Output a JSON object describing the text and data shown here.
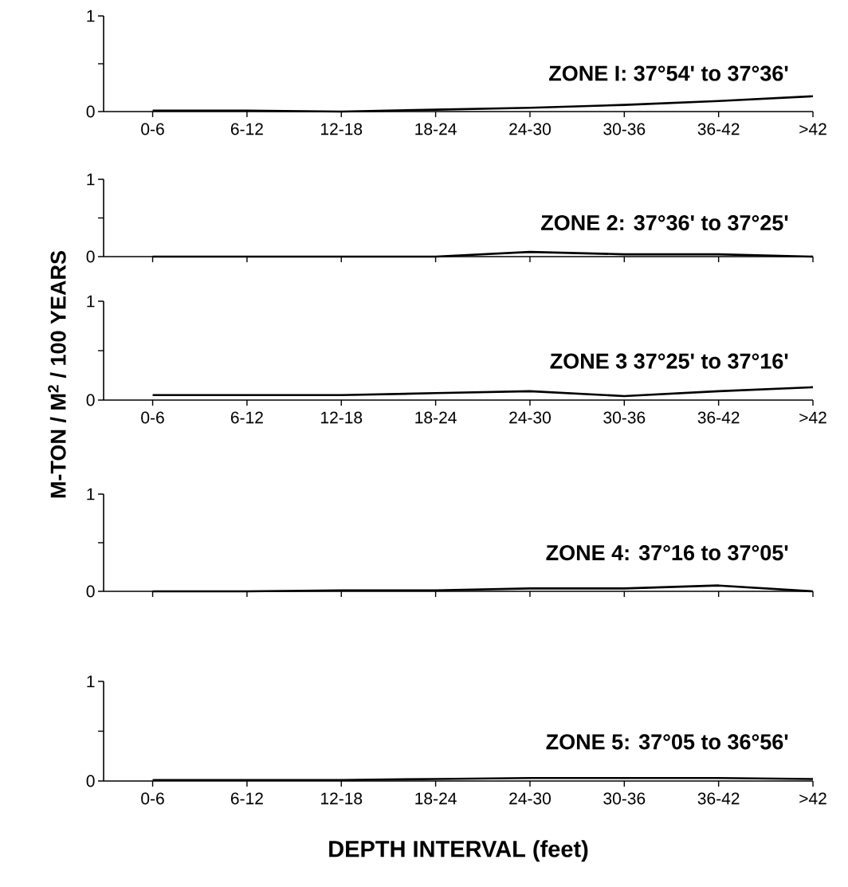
{
  "chart_data": [
    {
      "type": "line",
      "title": "ZONE I: 37°54' to 37°36'",
      "categories": [
        "0-6",
        "6-12",
        "12-18",
        "18-24",
        "24-30",
        "30-36",
        "36-42",
        ">42"
      ],
      "values": [
        0.01,
        0.01,
        0.0,
        0.02,
        0.04,
        0.07,
        0.11,
        0.16
      ],
      "color": "#000000",
      "ylim": [
        0,
        1
      ],
      "yticks": [
        0,
        1
      ]
    },
    {
      "type": "line",
      "title": "ZONE 2: 37°36' to 37°25'",
      "categories": [
        null,
        null,
        null,
        null,
        null,
        null,
        null,
        null
      ],
      "values": [
        0.0,
        0.0,
        0.0,
        0.0,
        0.06,
        0.03,
        0.03,
        0.0
      ],
      "color": "#000000",
      "ylim": [
        0,
        1
      ],
      "yticks": [
        0,
        1
      ]
    },
    {
      "type": "line",
      "title": "ZONE 3 37°25' to 37°16'",
      "ylabel": "M-TON / M$^{2}$ / 100 YEARS",
      "categories": [
        "0-6",
        "6-12",
        "12-18",
        "18-24",
        "24-30",
        "30-36",
        "36-42",
        ">42"
      ],
      "values": [
        0.05,
        0.05,
        0.05,
        0.07,
        0.09,
        0.04,
        0.09,
        0.13
      ],
      "color": "#000000",
      "ylim": [
        0,
        1
      ],
      "yticks": [
        0,
        1
      ]
    },
    {
      "type": "line",
      "title": "ZONE 4: 37°16 to 37°05'",
      "categories": [
        null,
        null,
        null,
        null,
        null,
        null,
        null,
        null
      ],
      "values": [
        0.0,
        0.0,
        0.01,
        0.01,
        0.03,
        0.03,
        0.06,
        0.0
      ],
      "color": "#000000",
      "ylim": [
        0,
        1
      ],
      "yticks": [
        0,
        1
      ]
    },
    {
      "type": "line",
      "title": "ZONE 5: 37°05 to 36°56'",
      "xlabel": "DEPTH INTERVAL (feet)",
      "categories": [
        "0-6",
        "6-12",
        "12-18",
        "18-24",
        "24-30",
        "30-36",
        "36-42",
        ">42"
      ],
      "values": [
        0.01,
        0.01,
        0.01,
        0.02,
        0.03,
        0.03,
        0.03,
        0.02
      ],
      "color": "#000000",
      "ylim": [
        0,
        1
      ],
      "yticks": [
        0,
        1
      ]
    }
  ]
}
